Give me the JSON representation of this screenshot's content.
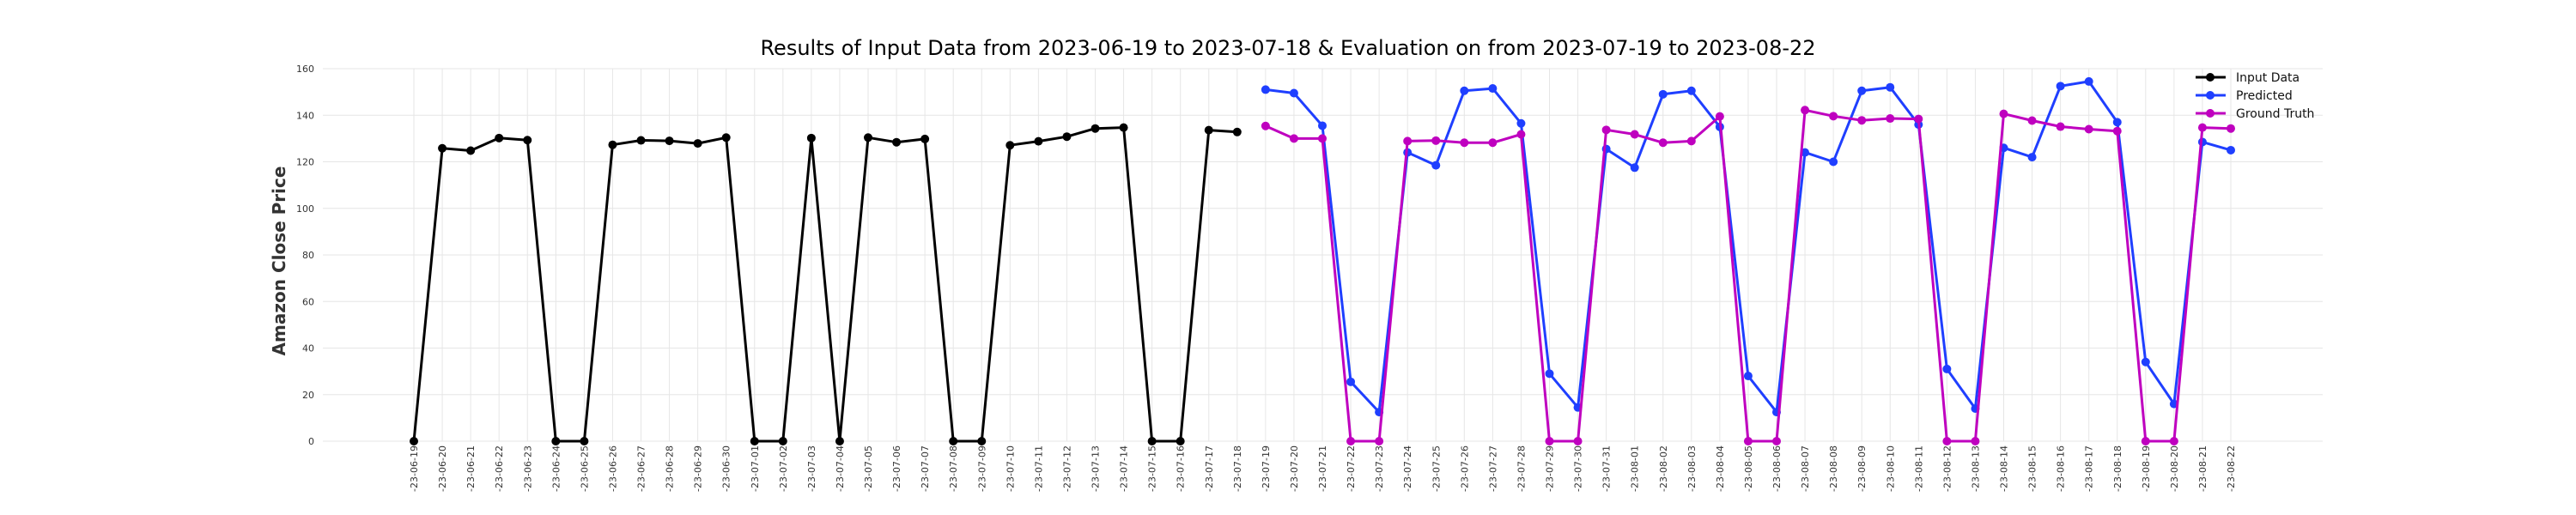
{
  "chart_data": {
    "type": "line",
    "title": "Results of Input Data from 2023-06-19 to 2023-07-18 & Evaluation on from 2023-07-19 to 2023-08-22",
    "ylabel": "Amazon Close Price",
    "xlabel": "",
    "ylim": [
      0,
      160
    ],
    "yticks": [
      0,
      20,
      40,
      60,
      80,
      100,
      120,
      140,
      160
    ],
    "grid": true,
    "legend_position": "top-right",
    "categories": [
      "2023-06-19",
      "2023-06-20",
      "2023-06-21",
      "2023-06-22",
      "2023-06-23",
      "2023-06-24",
      "2023-06-25",
      "2023-06-26",
      "2023-06-27",
      "2023-06-28",
      "2023-06-29",
      "2023-06-30",
      "2023-07-01",
      "2023-07-02",
      "2023-07-03",
      "2023-07-04",
      "2023-07-05",
      "2023-07-06",
      "2023-07-07",
      "2023-07-08",
      "2023-07-09",
      "2023-07-10",
      "2023-07-11",
      "2023-07-12",
      "2023-07-13",
      "2023-07-14",
      "2023-07-15",
      "2023-07-16",
      "2023-07-17",
      "2023-07-18",
      "2023-07-19",
      "2023-07-20",
      "2023-07-21",
      "2023-07-22",
      "2023-07-23",
      "2023-07-24",
      "2023-07-25",
      "2023-07-26",
      "2023-07-27",
      "2023-07-28",
      "2023-07-29",
      "2023-07-30",
      "2023-07-31",
      "2023-08-01",
      "2023-08-02",
      "2023-08-03",
      "2023-08-04",
      "2023-08-05",
      "2023-08-06",
      "2023-08-07",
      "2023-08-08",
      "2023-08-09",
      "2023-08-10",
      "2023-08-11",
      "2023-08-12",
      "2023-08-13",
      "2023-08-14",
      "2023-08-15",
      "2023-08-16",
      "2023-08-17",
      "2023-08-18",
      "2023-08-19",
      "2023-08-20",
      "2023-08-21",
      "2023-08-22"
    ],
    "xtick_labels": [
      "-23-06-19",
      "-23-06-20",
      "-23-06-21",
      "-23-06-22",
      "-23-06-23",
      "-23-06-24",
      "-23-06-25",
      "-23-06-26",
      "-23-06-27",
      "-23-06-28",
      "-23-06-29",
      "-23-06-30",
      "-23-07-01",
      "-23-07-02",
      "-23-07-03",
      "-23-07-04",
      "-23-07-05",
      "-23-07-06",
      "-23-07-07",
      "-23-07-08",
      "-23-07-09",
      "-23-07-10",
      "-23-07-11",
      "-23-07-12",
      "-23-07-13",
      "-23-07-14",
      "-23-07-15",
      "-23-07-16",
      "-23-07-17",
      "-23-07-18",
      "-23-07-19",
      "-23-07-20",
      "-23-07-21",
      "-23-07-22",
      "-23-07-23",
      "-23-07-24",
      "-23-07-25",
      "-23-07-26",
      "-23-07-27",
      "-23-07-28",
      "-23-07-29",
      "-23-07-30",
      "-23-07-31",
      "-23-08-01",
      "-23-08-02",
      "-23-08-03",
      "-23-08-04",
      "-23-08-05",
      "-23-08-06",
      "-23-08-07",
      "-23-08-08",
      "-23-08-09",
      "-23-08-10",
      "-23-08-11",
      "-23-08-12",
      "-23-08-13",
      "-23-08-14",
      "-23-08-15",
      "-23-08-16",
      "-23-08-17",
      "-23-08-18",
      "-23-08-19",
      "-23-08-20",
      "-23-08-21",
      "-23-08-22"
    ],
    "series": [
      {
        "name": "Input Data",
        "color": "#000000",
        "x": [
          "2023-06-19",
          "2023-06-20",
          "2023-06-21",
          "2023-06-22",
          "2023-06-23",
          "2023-06-24",
          "2023-06-25",
          "2023-06-26",
          "2023-06-27",
          "2023-06-28",
          "2023-06-29",
          "2023-06-30",
          "2023-07-01",
          "2023-07-02",
          "2023-07-03",
          "2023-07-04",
          "2023-07-05",
          "2023-07-06",
          "2023-07-07",
          "2023-07-08",
          "2023-07-09",
          "2023-07-10",
          "2023-07-11",
          "2023-07-12",
          "2023-07-13",
          "2023-07-14",
          "2023-07-15",
          "2023-07-16",
          "2023-07-17",
          "2023-07-18"
        ],
        "values": [
          0,
          125.8,
          124.8,
          130.2,
          129.3,
          0,
          0,
          127.3,
          129.2,
          129.0,
          127.9,
          130.4,
          0,
          0,
          130.2,
          0,
          130.4,
          128.4,
          129.8,
          0,
          0,
          127.1,
          128.8,
          130.8,
          134.3,
          134.7,
          0,
          0,
          133.6,
          132.8
        ]
      },
      {
        "name": "Predicted",
        "color": "#1f3fff",
        "x": [
          "2023-07-19",
          "2023-07-20",
          "2023-07-21",
          "2023-07-22",
          "2023-07-23",
          "2023-07-24",
          "2023-07-25",
          "2023-07-26",
          "2023-07-27",
          "2023-07-28",
          "2023-07-29",
          "2023-07-30",
          "2023-07-31",
          "2023-08-01",
          "2023-08-02",
          "2023-08-03",
          "2023-08-04",
          "2023-08-05",
          "2023-08-06",
          "2023-08-07",
          "2023-08-08",
          "2023-08-09",
          "2023-08-10",
          "2023-08-11",
          "2023-08-12",
          "2023-08-13",
          "2023-08-14",
          "2023-08-15",
          "2023-08-16",
          "2023-08-17",
          "2023-08-18",
          "2023-08-19",
          "2023-08-20",
          "2023-08-21",
          "2023-08-22"
        ],
        "values": [
          151,
          149.5,
          135.5,
          25.5,
          12.5,
          124,
          118.5,
          150.5,
          151.5,
          136.5,
          29,
          14.5,
          125.5,
          117.5,
          149,
          150.5,
          135,
          28,
          12.5,
          124,
          120,
          150.5,
          152,
          136,
          31,
          14,
          126,
          122,
          152.5,
          154.5,
          137,
          34,
          16,
          128.5,
          125
        ]
      },
      {
        "name": "Ground Truth",
        "color": "#bf00bf",
        "x": [
          "2023-07-19",
          "2023-07-20",
          "2023-07-21",
          "2023-07-22",
          "2023-07-23",
          "2023-07-24",
          "2023-07-25",
          "2023-07-26",
          "2023-07-27",
          "2023-07-28",
          "2023-07-29",
          "2023-07-30",
          "2023-07-31",
          "2023-08-01",
          "2023-08-02",
          "2023-08-03",
          "2023-08-04",
          "2023-08-05",
          "2023-08-06",
          "2023-08-07",
          "2023-08-08",
          "2023-08-09",
          "2023-08-10",
          "2023-08-11",
          "2023-08-12",
          "2023-08-13",
          "2023-08-14",
          "2023-08-15",
          "2023-08-16",
          "2023-08-17",
          "2023-08-18",
          "2023-08-19",
          "2023-08-20",
          "2023-08-21",
          "2023-08-22"
        ],
        "values": [
          135.4,
          130.0,
          130.0,
          0,
          0,
          128.9,
          129.1,
          128.2,
          128.2,
          131.8,
          0,
          0,
          133.7,
          131.8,
          128.2,
          128.9,
          139.5,
          0,
          0,
          142.2,
          139.6,
          137.8,
          138.6,
          138.4,
          0,
          0,
          140.6,
          137.7,
          135.1,
          134.0,
          133.2,
          0,
          0,
          134.7,
          134.3
        ]
      }
    ]
  }
}
